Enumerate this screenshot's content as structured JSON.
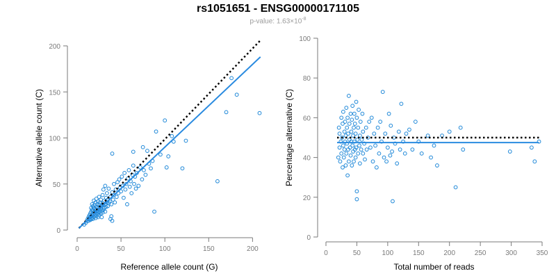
{
  "header": {
    "title": "rs1051651 - ENSG00000171105",
    "subtitle_prefix": "p-value: 1.63×10",
    "subtitle_exponent": "-8"
  },
  "colors": {
    "points": "#1f88d8",
    "fit_line": "#2a8be0",
    "reference_line": "#000000",
    "axes": "#7a7a7a"
  },
  "chart_data": [
    {
      "type": "scatter",
      "title": "",
      "xlabel": "Reference allele count (G)",
      "ylabel": "Alternative allele count (C)",
      "xlim": [
        0,
        210
      ],
      "ylim": [
        0,
        200
      ],
      "xticks": [
        0,
        50,
        100,
        150,
        200
      ],
      "yticks": [
        0,
        50,
        100,
        150,
        200
      ],
      "grid": false,
      "fit_line": [
        [
          2,
          2
        ],
        [
          209,
          188
        ]
      ],
      "reference_line": [
        [
          2,
          2
        ],
        [
          209,
          206
        ]
      ],
      "points": [
        [
          8,
          6
        ],
        [
          10,
          8
        ],
        [
          11,
          10
        ],
        [
          12,
          12
        ],
        [
          13,
          10
        ],
        [
          13,
          14
        ],
        [
          14,
          12
        ],
        [
          14,
          16
        ],
        [
          15,
          11
        ],
        [
          15,
          14
        ],
        [
          15,
          18
        ],
        [
          16,
          12
        ],
        [
          16,
          15
        ],
        [
          16,
          20
        ],
        [
          16,
          24
        ],
        [
          17,
          13
        ],
        [
          17,
          16
        ],
        [
          17,
          22
        ],
        [
          17,
          28
        ],
        [
          18,
          12
        ],
        [
          18,
          17
        ],
        [
          18,
          21
        ],
        [
          18,
          26
        ],
        [
          19,
          14
        ],
        [
          19,
          19
        ],
        [
          19,
          24
        ],
        [
          19,
          32
        ],
        [
          20,
          16
        ],
        [
          20,
          20
        ],
        [
          20,
          23
        ],
        [
          20,
          27
        ],
        [
          21,
          13
        ],
        [
          21,
          18
        ],
        [
          21,
          22
        ],
        [
          21,
          30
        ],
        [
          22,
          15
        ],
        [
          22,
          20
        ],
        [
          22,
          25
        ],
        [
          22,
          34
        ],
        [
          23,
          17
        ],
        [
          23,
          21
        ],
        [
          23,
          28
        ],
        [
          24,
          14
        ],
        [
          24,
          19
        ],
        [
          24,
          24
        ],
        [
          24,
          31
        ],
        [
          25,
          16
        ],
        [
          25,
          22
        ],
        [
          25,
          27
        ],
        [
          25,
          36
        ],
        [
          26,
          20
        ],
        [
          26,
          25
        ],
        [
          26,
          30
        ],
        [
          27,
          18
        ],
        [
          27,
          23
        ],
        [
          27,
          33
        ],
        [
          28,
          14
        ],
        [
          28,
          21
        ],
        [
          28,
          26
        ],
        [
          29,
          19
        ],
        [
          29,
          29
        ],
        [
          29,
          38
        ],
        [
          30,
          22
        ],
        [
          30,
          27
        ],
        [
          30,
          44
        ],
        [
          31,
          24
        ],
        [
          31,
          32
        ],
        [
          32,
          20
        ],
        [
          32,
          28
        ],
        [
          32,
          48
        ],
        [
          33,
          25
        ],
        [
          33,
          35
        ],
        [
          34,
          30
        ],
        [
          34,
          40
        ],
        [
          35,
          26
        ],
        [
          35,
          33
        ],
        [
          36,
          29
        ],
        [
          36,
          45
        ],
        [
          37,
          31
        ],
        [
          38,
          12
        ],
        [
          38,
          36
        ],
        [
          39,
          15
        ],
        [
          39,
          28
        ],
        [
          40,
          10
        ],
        [
          40,
          41
        ],
        [
          40,
          83
        ],
        [
          41,
          33
        ],
        [
          42,
          38
        ],
        [
          42,
          50
        ],
        [
          43,
          30
        ],
        [
          44,
          44
        ],
        [
          45,
          36
        ],
        [
          46,
          52
        ],
        [
          47,
          40
        ],
        [
          48,
          55
        ],
        [
          49,
          46
        ],
        [
          50,
          42
        ],
        [
          51,
          58
        ],
        [
          52,
          48
        ],
        [
          53,
          35
        ],
        [
          54,
          62
        ],
        [
          55,
          44
        ],
        [
          56,
          50
        ],
        [
          57,
          28
        ],
        [
          58,
          56
        ],
        [
          59,
          65
        ],
        [
          60,
          47
        ],
        [
          61,
          53
        ],
        [
          62,
          40
        ],
        [
          63,
          60
        ],
        [
          64,
          70
        ],
        [
          64,
          85
        ],
        [
          65,
          50
        ],
        [
          66,
          58
        ],
        [
          67,
          45
        ],
        [
          68,
          62
        ],
        [
          70,
          48
        ],
        [
          72,
          68
        ],
        [
          74,
          55
        ],
        [
          75,
          90
        ],
        [
          76,
          65
        ],
        [
          78,
          60
        ],
        [
          80,
          86
        ],
        [
          82,
          72
        ],
        [
          84,
          67
        ],
        [
          86,
          75
        ],
        [
          88,
          20
        ],
        [
          90,
          107
        ],
        [
          95,
          82
        ],
        [
          100,
          119
        ],
        [
          102,
          68
        ],
        [
          104,
          80
        ],
        [
          108,
          102
        ],
        [
          110,
          96
        ],
        [
          120,
          67
        ],
        [
          124,
          97
        ],
        [
          160,
          53
        ],
        [
          170,
          128
        ],
        [
          176,
          165
        ],
        [
          182,
          147
        ],
        [
          208,
          127
        ]
      ]
    },
    {
      "type": "scatter",
      "title": "",
      "xlabel": "Total number of reads",
      "ylabel": "Percentage alternative (C)",
      "xlim": [
        0,
        350
      ],
      "ylim": [
        0,
        100
      ],
      "xticks": [
        0,
        50,
        100,
        150,
        200,
        250,
        300,
        350
      ],
      "yticks": [
        0,
        20,
        40,
        60,
        80,
        100
      ],
      "grid": false,
      "fit_line": [
        [
          18,
          47.5
        ],
        [
          345,
          47.5
        ]
      ],
      "reference_line": [
        [
          18,
          50
        ],
        [
          345,
          50
        ]
      ],
      "points": [
        [
          20,
          40
        ],
        [
          21,
          55
        ],
        [
          22,
          45
        ],
        [
          22,
          52
        ],
        [
          23,
          38
        ],
        [
          24,
          48
        ],
        [
          25,
          60
        ],
        [
          25,
          42
        ],
        [
          26,
          50
        ],
        [
          27,
          35
        ],
        [
          27,
          57
        ],
        [
          28,
          46
        ],
        [
          28,
          63
        ],
        [
          29,
          40
        ],
        [
          30,
          53
        ],
        [
          30,
          44
        ],
        [
          31,
          58
        ],
        [
          31,
          48
        ],
        [
          32,
          36
        ],
        [
          32,
          51
        ],
        [
          33,
          42
        ],
        [
          33,
          65
        ],
        [
          34,
          55
        ],
        [
          34,
          47
        ],
        [
          35,
          31
        ],
        [
          35,
          60
        ],
        [
          36,
          44
        ],
        [
          36,
          52
        ],
        [
          37,
          38
        ],
        [
          37,
          71
        ],
        [
          38,
          49
        ],
        [
          38,
          57
        ],
        [
          39,
          45
        ],
        [
          40,
          62
        ],
        [
          40,
          41
        ],
        [
          41,
          53
        ],
        [
          41,
          48
        ],
        [
          42,
          36
        ],
        [
          42,
          59
        ],
        [
          43,
          46
        ],
        [
          43,
          66
        ],
        [
          44,
          51
        ],
        [
          44,
          43
        ],
        [
          45,
          55
        ],
        [
          45,
          38
        ],
        [
          46,
          62
        ],
        [
          46,
          48
        ],
        [
          47,
          44
        ],
        [
          47,
          57
        ],
        [
          48,
          40
        ],
        [
          48,
          52
        ],
        [
          49,
          68
        ],
        [
          49,
          45
        ],
        [
          50,
          23
        ],
        [
          50,
          19
        ],
        [
          50,
          60
        ],
        [
          51,
          49
        ],
        [
          52,
          42
        ],
        [
          52,
          55
        ],
        [
          53,
          64
        ],
        [
          54,
          46
        ],
        [
          55,
          51
        ],
        [
          55,
          37
        ],
        [
          56,
          58
        ],
        [
          57,
          44
        ],
        [
          58,
          49
        ],
        [
          59,
          62
        ],
        [
          60,
          42
        ],
        [
          60,
          53
        ],
        [
          62,
          47
        ],
        [
          63,
          39
        ],
        [
          65,
          55
        ],
        [
          66,
          44
        ],
        [
          68,
          50
        ],
        [
          70,
          58
        ],
        [
          72,
          45
        ],
        [
          74,
          60
        ],
        [
          76,
          38
        ],
        [
          78,
          52
        ],
        [
          80,
          46
        ],
        [
          82,
          35
        ],
        [
          84,
          55
        ],
        [
          86,
          42
        ],
        [
          88,
          58
        ],
        [
          90,
          48
        ],
        [
          92,
          73
        ],
        [
          94,
          40
        ],
        [
          96,
          52
        ],
        [
          98,
          38
        ],
        [
          100,
          45
        ],
        [
          102,
          62
        ],
        [
          104,
          41
        ],
        [
          105,
          56
        ],
        [
          107,
          43
        ],
        [
          108,
          18
        ],
        [
          110,
          50
        ],
        [
          112,
          47
        ],
        [
          115,
          37
        ],
        [
          118,
          53
        ],
        [
          120,
          44
        ],
        [
          122,
          67
        ],
        [
          125,
          48
        ],
        [
          128,
          42
        ],
        [
          130,
          52
        ],
        [
          135,
          54
        ],
        [
          140,
          44
        ],
        [
          145,
          58
        ],
        [
          150,
          48
        ],
        [
          155,
          42
        ],
        [
          165,
          51
        ],
        [
          170,
          40
        ],
        [
          175,
          46
        ],
        [
          180,
          36
        ],
        [
          188,
          51
        ],
        [
          200,
          53
        ],
        [
          210,
          25
        ],
        [
          218,
          55
        ],
        [
          222,
          44
        ],
        [
          298,
          43
        ],
        [
          333,
          45
        ],
        [
          338,
          38
        ],
        [
          345,
          48
        ]
      ]
    }
  ]
}
